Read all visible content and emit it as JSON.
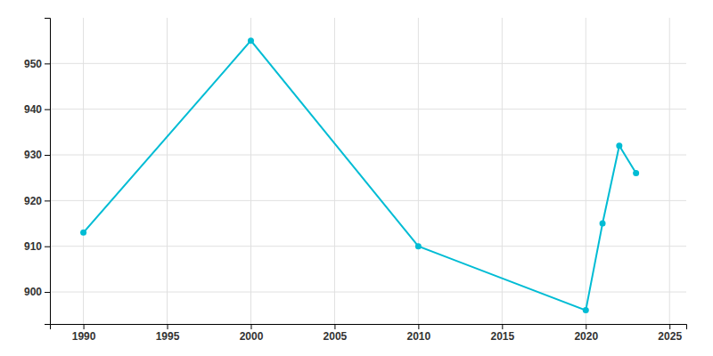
{
  "chart_data": {
    "type": "line",
    "x": [
      1990,
      2000,
      2010,
      2020,
      2021,
      2022,
      2023
    ],
    "values": [
      913,
      955,
      910,
      896,
      915,
      932,
      926
    ],
    "color": "#00BCD4",
    "marker": "circle",
    "xlim": [
      1988,
      2026
    ],
    "ylim": [
      893,
      960
    ],
    "xticks": [
      1990,
      1995,
      2000,
      2005,
      2010,
      2015,
      2020,
      2025
    ],
    "yticks": [
      900,
      910,
      920,
      930,
      940,
      950
    ],
    "grid": true
  }
}
